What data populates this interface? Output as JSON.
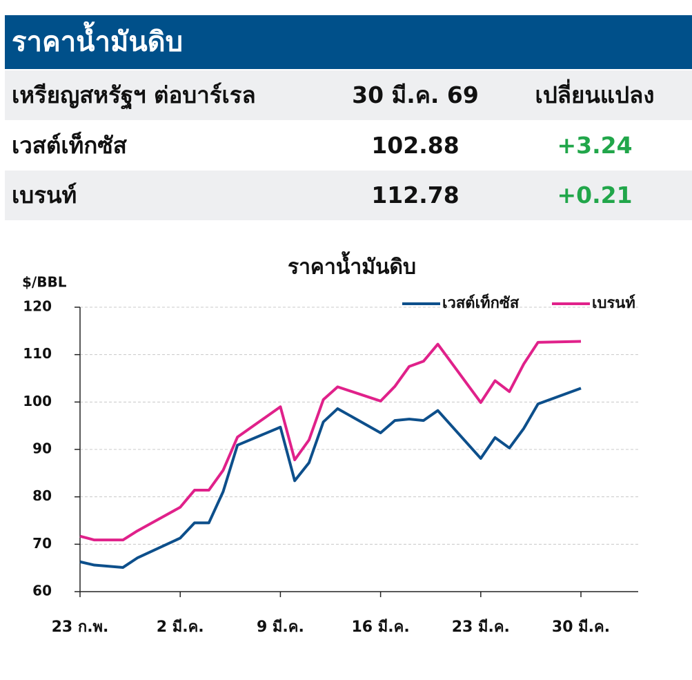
{
  "header": {
    "title": "ราคาน้ำมันดิบ"
  },
  "table": {
    "columns": [
      "เหรียญสหรัฐฯ ต่อบาร์เรล",
      "30 มี.ค. 69",
      "เปลี่ยนแปลง"
    ],
    "rows": [
      [
        "เวสต์เท็กซัส",
        "102.88",
        "+3.24"
      ],
      [
        "เบรนท์",
        "112.78",
        "+0.21"
      ]
    ]
  },
  "chart_data": {
    "type": "line",
    "title": "ราคาน้ำมันดิบ",
    "y_label": "$/BBL",
    "x": [
      0,
      1,
      3,
      4,
      7,
      8,
      9,
      10,
      11,
      14,
      15,
      16,
      17,
      18,
      21,
      22,
      23,
      24,
      25,
      28,
      29,
      30,
      31,
      32,
      35
    ],
    "series": [
      {
        "name": "เวสต์เท็กซัส",
        "color": "#0d4f8b",
        "values": [
          66.3,
          65.6,
          65.1,
          67.1,
          71.3,
          74.5,
          74.5,
          81.1,
          90.9,
          94.7,
          83.4,
          87.2,
          95.8,
          98.6,
          93.5,
          96.1,
          96.4,
          96.1,
          98.2,
          88.1,
          92.5,
          90.3,
          94.4,
          99.6,
          102.9
        ]
      },
      {
        "name": "เบรนท์",
        "color": "#e0218a",
        "values": [
          71.7,
          70.9,
          70.9,
          72.8,
          77.8,
          81.4,
          81.4,
          85.6,
          92.6,
          99.0,
          87.8,
          92.0,
          100.5,
          103.2,
          100.2,
          103.3,
          107.5,
          108.6,
          112.2,
          99.9,
          104.5,
          102.2,
          108.0,
          112.6,
          112.8
        ]
      }
    ],
    "xlim": [
      0,
      39
    ],
    "ylim": [
      60,
      120
    ],
    "xticks": [
      {
        "value": 0,
        "label": "23 ก.พ."
      },
      {
        "value": 7,
        "label": "2 มี.ค."
      },
      {
        "value": 14,
        "label": "9 มี.ค."
      },
      {
        "value": 21,
        "label": "16 มี.ค."
      },
      {
        "value": 28,
        "label": "23 มี.ค."
      },
      {
        "value": 35,
        "label": "30 มี.ค."
      }
    ],
    "yticks": [
      60,
      70,
      80,
      90,
      100,
      110,
      120
    ],
    "grid": true,
    "legend": "top-right"
  }
}
